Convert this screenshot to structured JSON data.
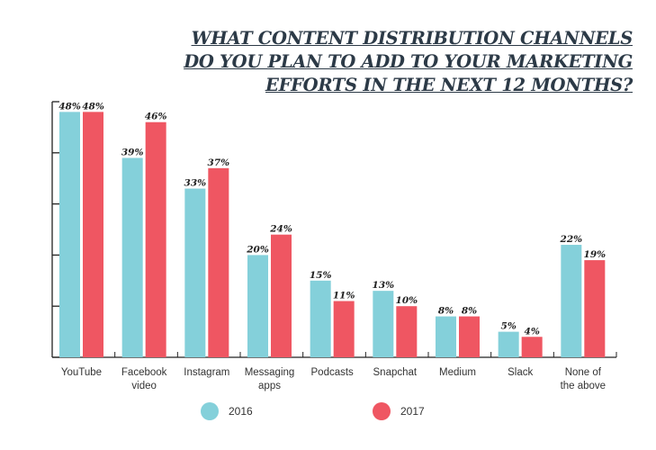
{
  "chart_data": {
    "type": "bar",
    "title": [
      "WHAT CONTENT DISTRIBUTION CHANNELS",
      "DO YOU PLAN TO ADD TO YOUR MARKETING",
      "EFFORTS IN THE NEXT 12 MONTHS?"
    ],
    "categories": [
      [
        "YouTube"
      ],
      [
        "Facebook",
        "video"
      ],
      [
        "Instagram"
      ],
      [
        "Messaging",
        "apps"
      ],
      [
        "Podcasts"
      ],
      [
        "Snapchat"
      ],
      [
        "Medium"
      ],
      [
        "Slack"
      ],
      [
        "None of",
        "the above"
      ]
    ],
    "series": [
      {
        "name": "2016",
        "color": "#84d0da",
        "values": [
          48,
          39,
          33,
          20,
          15,
          13,
          8,
          5,
          22
        ]
      },
      {
        "name": "2017",
        "color": "#ef5662",
        "values": [
          48,
          46,
          37,
          24,
          11,
          10,
          8,
          4,
          19
        ]
      }
    ],
    "value_suffix": "%",
    "ylim": [
      0,
      50
    ],
    "ytick_step": 10,
    "grid": false,
    "legend_position": "bottom"
  }
}
